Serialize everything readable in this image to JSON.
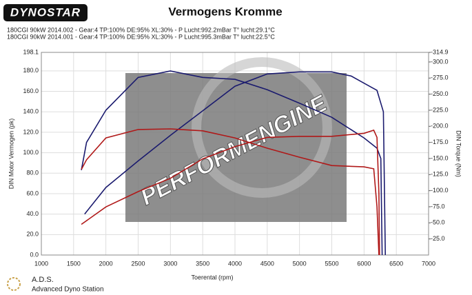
{
  "logo": "DYNOSTAR",
  "chart_data": {
    "type": "line",
    "title": "Vermogens Kromme",
    "legend": [
      {
        "text": "180CGI 90kW 2014.002 - Gear:4 TP:100% DE:95% XL:30%    - P Lucht:992.2mBar T° lucht:29.1°C",
        "color": "#1a1a6e"
      },
      {
        "text": "180CGI 90kW 2014.001 - Gear:4 TP:100% DE:95% XL:30%    - P Lucht:995.3mBar T° lucht:22.5°C",
        "color": "#b01818"
      }
    ],
    "watermark": "PERFORMENGINE",
    "xlabel": "Toerental (rpm)",
    "ylabel": "DIN Motor Vermogen (pk)",
    "y2label": "DIN Torque (Nm)",
    "xlim": [
      1000,
      7000
    ],
    "xticks": [
      1000,
      1500,
      2000,
      2500,
      3000,
      3500,
      4000,
      4500,
      5000,
      5500,
      6000,
      6500,
      7000
    ],
    "ylim": [
      0,
      198.1
    ],
    "yticks": [
      {
        "value": 0,
        "label": "0.0"
      },
      {
        "value": 20,
        "label": "20.0"
      },
      {
        "value": 40,
        "label": "40.0"
      },
      {
        "value": 60,
        "label": "60.0"
      },
      {
        "value": 80,
        "label": "80.0"
      },
      {
        "value": 100,
        "label": "100.0"
      },
      {
        "value": 120,
        "label": "120.0"
      },
      {
        "value": 140,
        "label": "140.0"
      },
      {
        "value": 160,
        "label": "160.0"
      },
      {
        "value": 180,
        "label": "180.0"
      },
      198.1
    ],
    "y2lim": [
      0,
      314.9
    ],
    "y2ticks": [
      {
        "value": 25,
        "label": "-25.0"
      },
      {
        "value": 50,
        "label": "-50.0"
      },
      {
        "value": 75,
        "label": "-75.0"
      },
      {
        "value": 100,
        "label": "-100.0"
      },
      {
        "value": 125,
        "label": "-125.0"
      },
      {
        "value": 150,
        "label": "-150.0"
      },
      {
        "value": 175,
        "label": "-175.0"
      },
      {
        "value": 200,
        "label": "-200.0"
      },
      {
        "value": 225,
        "label": "-225.0"
      },
      {
        "value": 250,
        "label": "-250.0"
      },
      {
        "value": 275,
        "label": "-275.0"
      },
      {
        "value": 300,
        "label": "-300.0"
      },
      {
        "value": 314.9,
        "label": "-314.9"
      }
    ],
    "grid": true,
    "series": [
      {
        "color": "#1a1a6e",
        "axis": "y",
        "x": [
          1670,
          2000,
          2500,
          3000,
          3500,
          4000,
          4500,
          5000,
          5500,
          5800,
          6000,
          6200,
          6300,
          6330
        ],
        "values": [
          40,
          66,
          92,
          117,
          141,
          165,
          177,
          179,
          179,
          175,
          168,
          161,
          140,
          0
        ]
      },
      {
        "color": "#1a1a6e",
        "axis": "y2",
        "x": [
          1620,
          1700,
          2000,
          2500,
          3000,
          3500,
          4000,
          4500,
          5000,
          5500,
          6000,
          6200,
          6260,
          6280
        ],
        "values": [
          132,
          175,
          225,
          276,
          286,
          276,
          273,
          257,
          236,
          214,
          182,
          166,
          150,
          0
        ]
      },
      {
        "color": "#b01818",
        "axis": "y",
        "x": [
          1620,
          2000,
          2500,
          3000,
          3500,
          4000,
          4500,
          5000,
          5500,
          6000,
          6150,
          6200,
          6230,
          6240
        ],
        "values": [
          30,
          47,
          62,
          75,
          94,
          106,
          115,
          116,
          116,
          119,
          122,
          115,
          60,
          0
        ]
      },
      {
        "color": "#b01818",
        "axis": "y2",
        "x": [
          1620,
          1700,
          2000,
          2500,
          3000,
          3500,
          4000,
          4500,
          5000,
          5500,
          6000,
          6150,
          6200,
          6230
        ],
        "values": [
          133,
          148,
          182,
          195,
          196,
          193,
          182,
          166,
          152,
          139,
          137,
          134,
          75,
          0
        ]
      }
    ]
  },
  "footer": {
    "title": "A.D.S.",
    "subtitle": "Advanced Dyno Station"
  }
}
